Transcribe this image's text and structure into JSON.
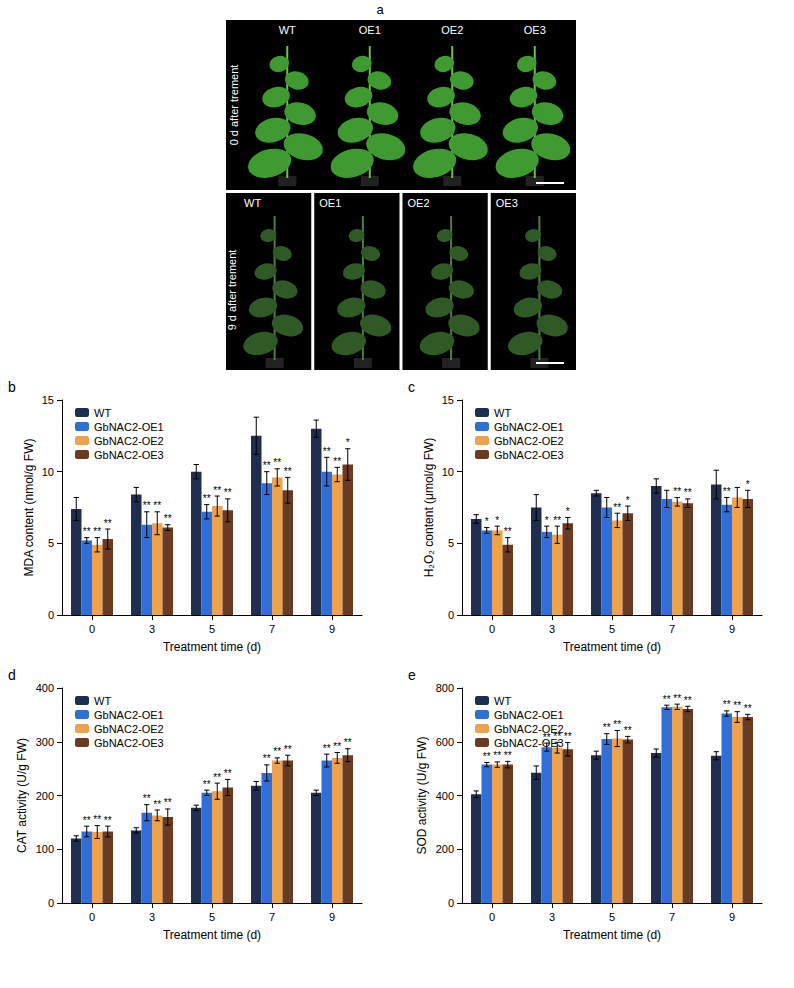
{
  "panel_a": {
    "label": "a",
    "rows": [
      {
        "title": "0 d after trement",
        "plants": [
          "WT",
          "OE1",
          "OE2",
          "OE3"
        ]
      },
      {
        "title": "9 d after trement",
        "plants": [
          "WT",
          "OE1",
          "OE2",
          "OE3"
        ]
      }
    ]
  },
  "chart_data": [
    {
      "type": "bar",
      "label": "b",
      "x_label": "Treatment time (d)",
      "y_label": "MDA content (nmol/g FW)",
      "categories": [
        "0",
        "3",
        "5",
        "7",
        "9"
      ],
      "ylim": [
        0,
        15
      ],
      "yticks": [
        0,
        5,
        10,
        15
      ],
      "grid": false,
      "legend": "top-left",
      "series": [
        {
          "name": "WT",
          "color": "#1f2d4f",
          "values": [
            7.4,
            8.4,
            10.0,
            12.5,
            13.0
          ],
          "errors": [
            0.8,
            0.5,
            0.5,
            1.3,
            0.6
          ],
          "significance": [
            null,
            null,
            null,
            null,
            null
          ]
        },
        {
          "name": "GbNAC2-OE1",
          "color": "#2f6fdc",
          "values": [
            5.2,
            6.3,
            7.2,
            9.2,
            10.0
          ],
          "errors": [
            0.2,
            0.9,
            0.5,
            0.8,
            1.0
          ],
          "significance": [
            "**",
            "**",
            "**",
            "**",
            "**"
          ]
        },
        {
          "name": "GbNAC2-OE2",
          "color": "#f0a24a",
          "values": [
            4.9,
            6.4,
            7.6,
            9.6,
            9.8
          ],
          "errors": [
            0.5,
            0.8,
            0.7,
            0.6,
            0.5
          ],
          "significance": [
            "**",
            "**",
            "**",
            "**",
            "**"
          ]
        },
        {
          "name": "GbNAC2-OE3",
          "color": "#6b3a22",
          "values": [
            5.3,
            6.1,
            7.3,
            8.7,
            10.5
          ],
          "errors": [
            0.7,
            0.2,
            0.8,
            0.9,
            1.1
          ],
          "significance": [
            "**",
            "**",
            "**",
            "**",
            "*"
          ]
        }
      ]
    },
    {
      "type": "bar",
      "label": "c",
      "x_label": "Treatment time (d)",
      "y_label": "H₂O₂ content (μmol/g FW)",
      "categories": [
        "0",
        "3",
        "5",
        "7",
        "9"
      ],
      "ylim": [
        0,
        15
      ],
      "yticks": [
        0,
        5,
        10,
        15
      ],
      "grid": false,
      "legend": "top-left",
      "series": [
        {
          "name": "WT",
          "color": "#1f2d4f",
          "values": [
            6.7,
            7.5,
            8.5,
            9.0,
            9.1
          ],
          "errors": [
            0.3,
            0.9,
            0.2,
            0.5,
            1.0
          ],
          "significance": [
            null,
            null,
            null,
            null,
            null
          ]
        },
        {
          "name": "GbNAC2-OE1",
          "color": "#2f6fdc",
          "values": [
            5.9,
            5.8,
            7.5,
            8.1,
            7.7
          ],
          "errors": [
            0.2,
            0.4,
            0.7,
            0.6,
            0.5
          ],
          "significance": [
            "*",
            "*",
            null,
            null,
            "**"
          ]
        },
        {
          "name": "GbNAC2-OE2",
          "color": "#f0a24a",
          "values": [
            5.9,
            5.6,
            6.6,
            7.9,
            8.2
          ],
          "errors": [
            0.3,
            0.6,
            0.5,
            0.3,
            0.7
          ],
          "significance": [
            "*",
            "**",
            "**",
            "**",
            null
          ]
        },
        {
          "name": "GbNAC2-OE3",
          "color": "#6b3a22",
          "values": [
            4.9,
            6.4,
            7.1,
            7.8,
            8.1
          ],
          "errors": [
            0.5,
            0.4,
            0.5,
            0.3,
            0.6
          ],
          "significance": [
            "**",
            "*",
            "*",
            "**",
            "*"
          ]
        }
      ]
    },
    {
      "type": "bar",
      "label": "d",
      "x_label": "Treatment time (d)",
      "y_label": "CAT activity (U/g FW)",
      "categories": [
        "0",
        "3",
        "5",
        "7",
        "9"
      ],
      "ylim": [
        0,
        400
      ],
      "yticks": [
        0,
        100,
        200,
        300,
        400
      ],
      "grid": false,
      "legend": "top-left",
      "series": [
        {
          "name": "WT",
          "color": "#1f2d4f",
          "values": [
            120,
            135,
            177,
            218,
            205
          ],
          "errors": [
            5,
            5,
            5,
            8,
            5
          ],
          "significance": [
            null,
            null,
            null,
            null,
            null
          ]
        },
        {
          "name": "GbNAC2-OE1",
          "color": "#2f6fdc",
          "values": [
            133,
            168,
            205,
            242,
            265
          ],
          "errors": [
            10,
            15,
            5,
            15,
            12
          ],
          "significance": [
            "**",
            "**",
            "**",
            "**",
            "**"
          ]
        },
        {
          "name": "GbNAC2-OE2",
          "color": "#f0a24a",
          "values": [
            132,
            163,
            208,
            265,
            270
          ],
          "errors": [
            12,
            10,
            15,
            5,
            10
          ],
          "significance": [
            "**",
            "**",
            "**",
            "**",
            "**"
          ]
        },
        {
          "name": "GbNAC2-OE3",
          "color": "#6b3a22",
          "values": [
            133,
            160,
            215,
            265,
            275
          ],
          "errors": [
            10,
            15,
            15,
            10,
            12
          ],
          "significance": [
            "**",
            "**",
            "**",
            "**",
            "**"
          ]
        }
      ]
    },
    {
      "type": "bar",
      "label": "e",
      "x_label": "Treatment time (d)",
      "y_label": "SOD activity (U/g FW)",
      "categories": [
        "0",
        "3",
        "5",
        "7",
        "9"
      ],
      "ylim": [
        0,
        800
      ],
      "yticks": [
        0,
        200,
        400,
        600,
        800
      ],
      "grid": false,
      "legend": "top-left",
      "series": [
        {
          "name": "WT",
          "color": "#1f2d4f",
          "values": [
            405,
            485,
            550,
            558,
            548
          ],
          "errors": [
            12,
            25,
            15,
            15,
            15
          ],
          "significance": [
            null,
            null,
            null,
            null,
            null
          ]
        },
        {
          "name": "GbNAC2-OE1",
          "color": "#2f6fdc",
          "values": [
            515,
            580,
            610,
            728,
            705
          ],
          "errors": [
            8,
            15,
            20,
            8,
            10
          ],
          "significance": [
            "**",
            "**",
            "**",
            "**",
            "**"
          ]
        },
        {
          "name": "GbNAC2-OE2",
          "color": "#f0a24a",
          "values": [
            515,
            578,
            612,
            730,
            692
          ],
          "errors": [
            10,
            20,
            30,
            10,
            20
          ],
          "significance": [
            "**",
            "**",
            "**",
            "**",
            "**"
          ]
        },
        {
          "name": "GbNAC2-OE3",
          "color": "#6b3a22",
          "values": [
            515,
            572,
            608,
            722,
            692
          ],
          "errors": [
            12,
            25,
            12,
            10,
            10
          ],
          "significance": [
            "**",
            "**",
            "**",
            "**",
            "**"
          ]
        }
      ]
    }
  ]
}
